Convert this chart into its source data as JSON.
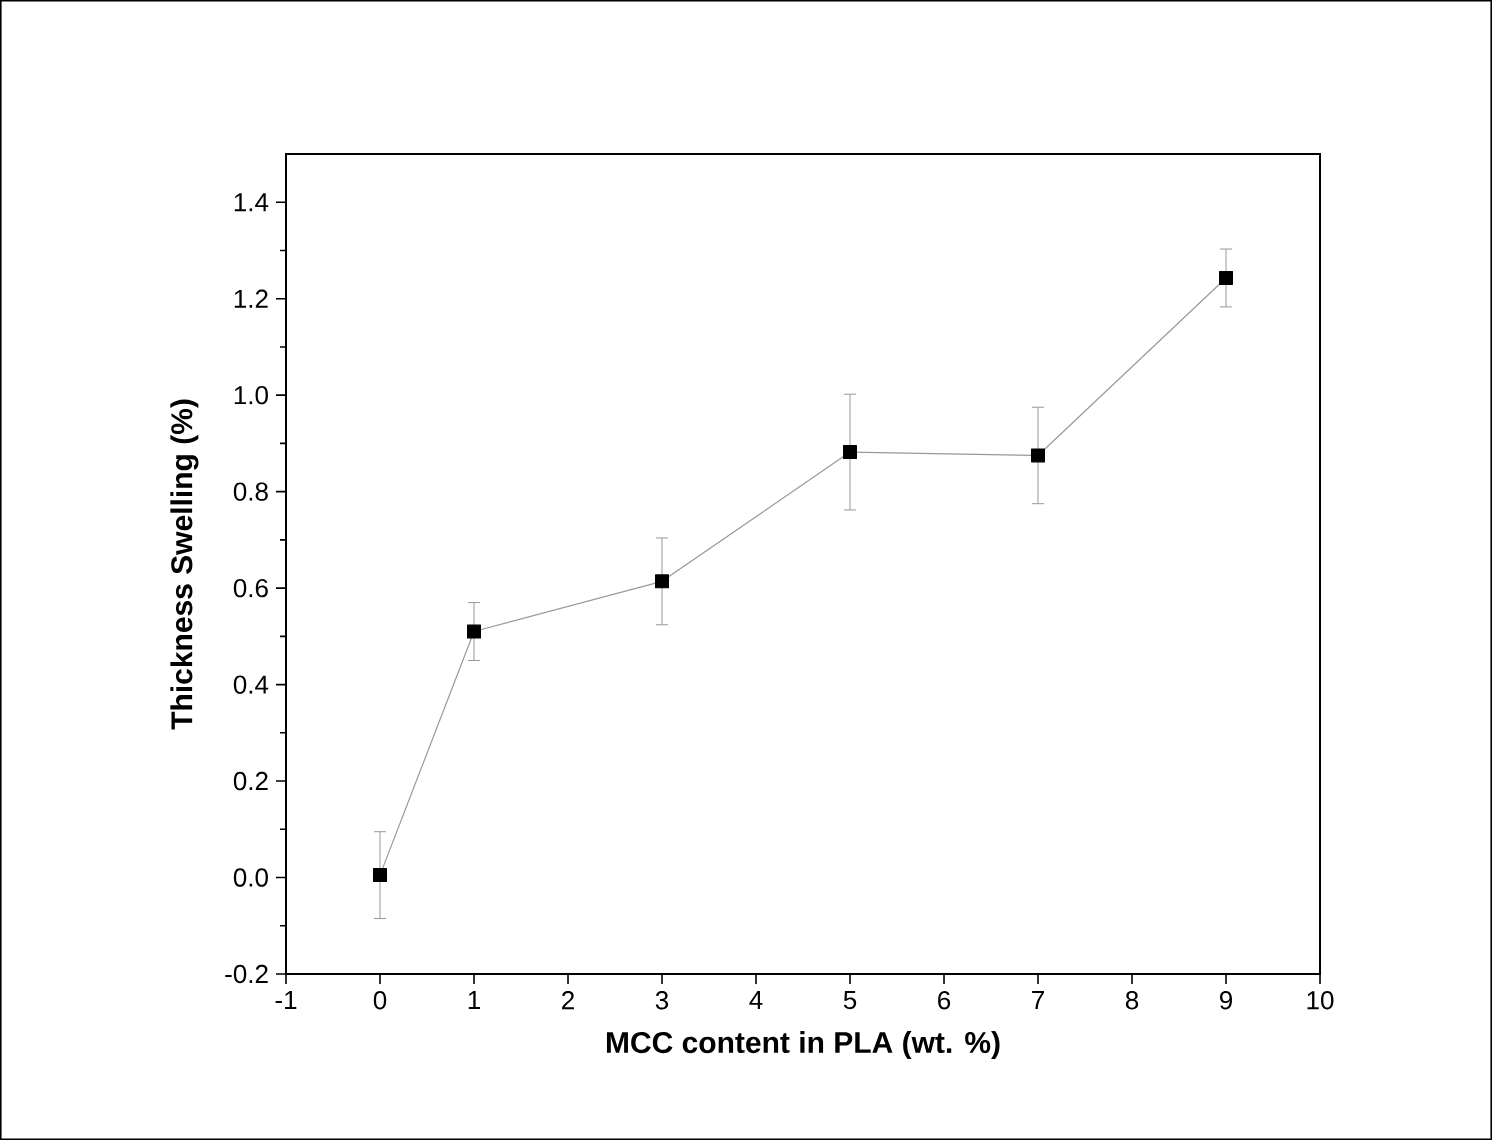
{
  "chart_data": {
    "type": "line",
    "xlabel": "MCC content in PLA (wt. %)",
    "ylabel": "Thickness Swelling (%)",
    "x": [
      0,
      1,
      3,
      5,
      7,
      9
    ],
    "series": [
      {
        "color": "#000000",
        "values": [
          0.005,
          0.51,
          0.614,
          0.882,
          0.875,
          1.243
        ],
        "errors": [
          0.09,
          0.06,
          0.09,
          0.12,
          0.1,
          0.06
        ]
      }
    ],
    "xlim": [
      -1,
      10
    ],
    "xticks": [
      -1,
      0,
      1,
      2,
      3,
      4,
      5,
      6,
      7,
      8,
      9,
      10
    ],
    "ylim": [
      -0.2,
      1.5
    ],
    "yticks": [
      -0.2,
      {
        "value": 0,
        "label": "0.0"
      },
      0.2,
      0.4,
      0.6,
      0.8,
      {
        "value": 1,
        "label": "1.0"
      },
      1.2,
      1.4
    ],
    "marker": "square",
    "line_style": "solid",
    "grid": false
  }
}
